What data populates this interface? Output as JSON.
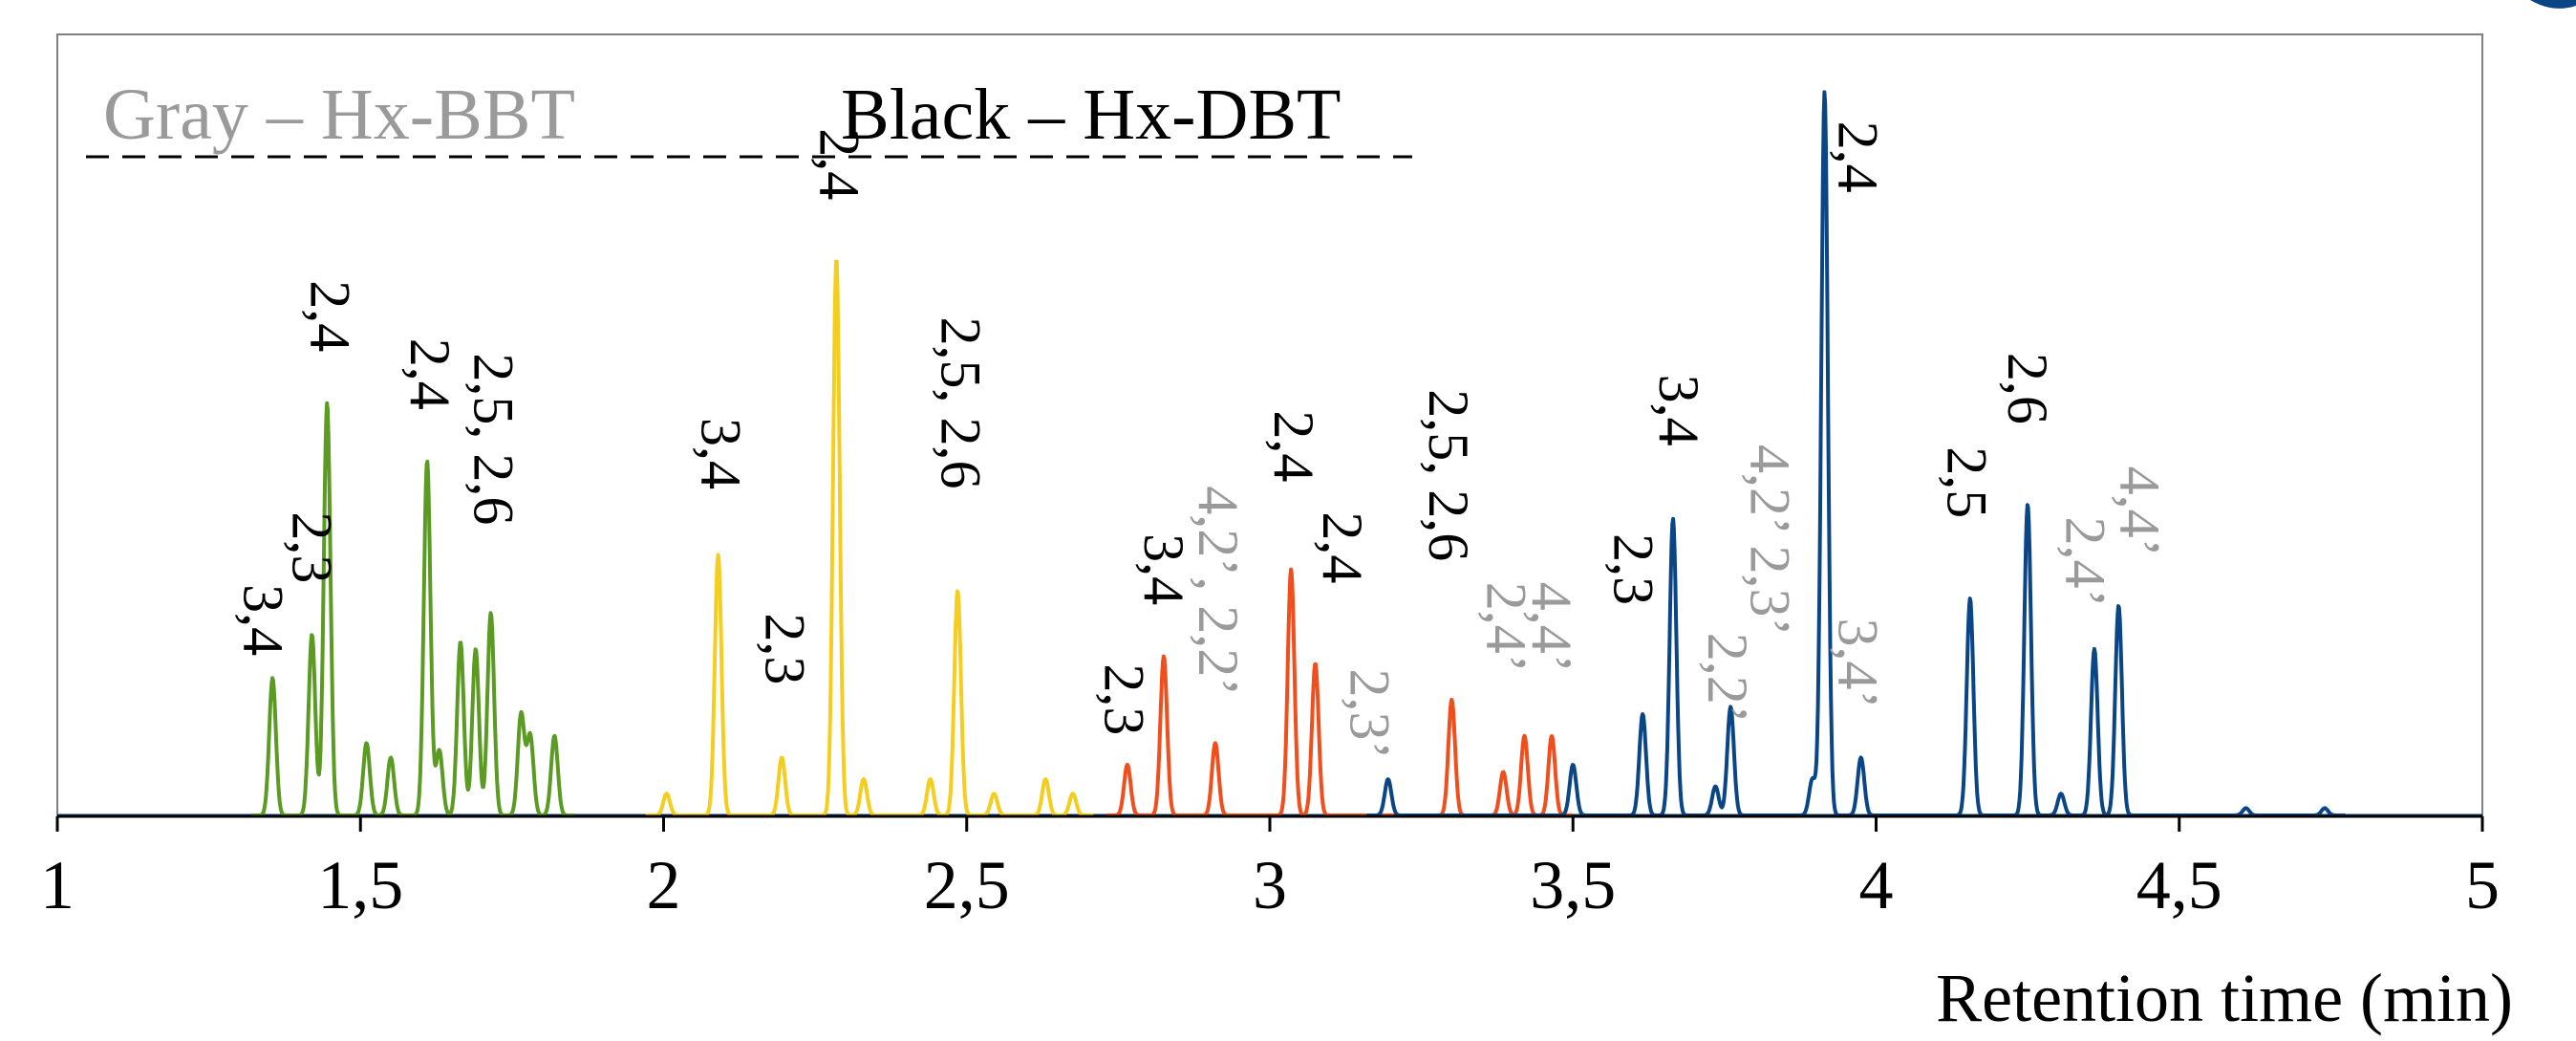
{
  "chart_data": {
    "type": "line",
    "title": "",
    "xlabel": "Retention time (min)",
    "ylabel": "",
    "xlim": [
      1,
      5
    ],
    "ylim": [
      0,
      1
    ],
    "grid": false,
    "x_ticks": [
      1,
      1.5,
      2,
      2.5,
      3,
      3.5,
      4,
      4.5,
      5
    ],
    "x_tick_labels": [
      "1",
      "1,5",
      "2",
      "2,5",
      "3",
      "3,5",
      "4",
      "4,5",
      "5"
    ],
    "legend": [
      {
        "label": "Gray – Hx-BBT",
        "color": "#9a9a9a"
      },
      {
        "label": "Black – Hx-DBT",
        "color": "#000000"
      }
    ],
    "series": [
      {
        "color": "#5b9a23",
        "peaks": [
          {
            "x": 1.355,
            "y": 0.19
          },
          {
            "x": 1.42,
            "y": 0.25
          },
          {
            "x": 1.445,
            "y": 0.57
          },
          {
            "x": 1.51,
            "y": 0.1
          },
          {
            "x": 1.55,
            "y": 0.08
          },
          {
            "x": 1.61,
            "y": 0.49
          },
          {
            "x": 1.63,
            "y": 0.09
          },
          {
            "x": 1.665,
            "y": 0.24
          },
          {
            "x": 1.69,
            "y": 0.23
          },
          {
            "x": 1.715,
            "y": 0.28
          },
          {
            "x": 1.765,
            "y": 0.14
          },
          {
            "x": 1.78,
            "y": 0.11
          },
          {
            "x": 1.82,
            "y": 0.11
          }
        ]
      },
      {
        "color": "#f5cd1e",
        "peaks": [
          {
            "x": 2.005,
            "y": 0.03
          },
          {
            "x": 2.09,
            "y": 0.36
          },
          {
            "x": 2.195,
            "y": 0.08
          },
          {
            "x": 2.285,
            "y": 0.77
          },
          {
            "x": 2.33,
            "y": 0.05
          },
          {
            "x": 2.44,
            "y": 0.05
          },
          {
            "x": 2.485,
            "y": 0.31
          },
          {
            "x": 2.545,
            "y": 0.03
          },
          {
            "x": 2.63,
            "y": 0.05
          },
          {
            "x": 2.675,
            "y": 0.03
          }
        ]
      },
      {
        "color": "#f04e1c",
        "peaks": [
          {
            "x": 2.765,
            "y": 0.07
          },
          {
            "x": 2.825,
            "y": 0.22
          },
          {
            "x": 2.91,
            "y": 0.1
          },
          {
            "x": 3.035,
            "y": 0.34
          },
          {
            "x": 3.075,
            "y": 0.21
          },
          {
            "x": 3.3,
            "y": 0.16
          },
          {
            "x": 3.385,
            "y": 0.06
          },
          {
            "x": 3.42,
            "y": 0.11
          },
          {
            "x": 3.465,
            "y": 0.11
          }
        ]
      },
      {
        "color": "#0a4586",
        "peaks": [
          {
            "x": 3.195,
            "y": 0.05
          },
          {
            "x": 3.5,
            "y": 0.07
          },
          {
            "x": 3.615,
            "y": 0.14
          },
          {
            "x": 3.665,
            "y": 0.41
          },
          {
            "x": 3.735,
            "y": 0.04
          },
          {
            "x": 3.76,
            "y": 0.15
          },
          {
            "x": 3.895,
            "y": 0.05
          },
          {
            "x": 3.915,
            "y": 1.0
          },
          {
            "x": 3.975,
            "y": 0.08
          },
          {
            "x": 4.155,
            "y": 0.3
          },
          {
            "x": 4.25,
            "y": 0.43
          },
          {
            "x": 4.305,
            "y": 0.03
          },
          {
            "x": 4.36,
            "y": 0.23
          },
          {
            "x": 4.4,
            "y": 0.29
          },
          {
            "x": 4.61,
            "y": 0.01
          },
          {
            "x": 4.74,
            "y": 0.01
          }
        ]
      }
    ],
    "peak_labels": [
      {
        "text": "3,4",
        "x": 1.33,
        "y": 0.27,
        "color": "#000000"
      },
      {
        "text": "2,3",
        "x": 1.41,
        "y": 0.37,
        "color": "#000000"
      },
      {
        "text": "2,4",
        "x": 1.44,
        "y": 0.69,
        "color": "#000000"
      },
      {
        "text": "2,4",
        "x": 1.605,
        "y": 0.61,
        "color": "#000000"
      },
      {
        "text": "2,5, 2,6",
        "x": 1.71,
        "y": 0.52,
        "color": "#000000"
      },
      {
        "text": "3,4",
        "x": 2.085,
        "y": 0.5,
        "color": "#000000"
      },
      {
        "text": "2,3",
        "x": 2.19,
        "y": 0.23,
        "color": "#000000"
      },
      {
        "text": "2,4",
        "x": 2.28,
        "y": 0.9,
        "color": "#000000"
      },
      {
        "text": "2,5, 2,6",
        "x": 2.48,
        "y": 0.57,
        "color": "#000000"
      },
      {
        "text": "2,3",
        "x": 2.75,
        "y": 0.16,
        "color": "#000000"
      },
      {
        "text": "3,4",
        "x": 2.815,
        "y": 0.34,
        "color": "#000000"
      },
      {
        "text": "4,2’, 2,2’",
        "x": 2.905,
        "y": 0.31,
        "color": "#9a9a9a"
      },
      {
        "text": "2,4",
        "x": 3.03,
        "y": 0.51,
        "color": "#000000"
      },
      {
        "text": "2,4",
        "x": 3.11,
        "y": 0.37,
        "color": "#000000"
      },
      {
        "text": "2,3’",
        "x": 3.155,
        "y": 0.14,
        "color": "#9a9a9a"
      },
      {
        "text": "2,5, 2,6",
        "x": 3.285,
        "y": 0.47,
        "color": "#000000"
      },
      {
        "text": "2,4’",
        "x": 3.38,
        "y": 0.26,
        "color": "#9a9a9a"
      },
      {
        "text": "4,4’",
        "x": 3.455,
        "y": 0.26,
        "color": "#9a9a9a"
      },
      {
        "text": "2,3",
        "x": 3.59,
        "y": 0.34,
        "color": "#000000"
      },
      {
        "text": "3,4",
        "x": 3.665,
        "y": 0.56,
        "color": "#000000"
      },
      {
        "text": "2,2’",
        "x": 3.745,
        "y": 0.19,
        "color": "#9a9a9a"
      },
      {
        "text": "4,2’ 2,3’",
        "x": 3.815,
        "y": 0.38,
        "color": "#9a9a9a"
      },
      {
        "text": "2,4",
        "x": 3.96,
        "y": 0.91,
        "color": "#000000"
      },
      {
        "text": "3,4’",
        "x": 3.96,
        "y": 0.21,
        "color": "#9a9a9a"
      },
      {
        "text": "2,5",
        "x": 4.14,
        "y": 0.46,
        "color": "#000000"
      },
      {
        "text": "2,6",
        "x": 4.24,
        "y": 0.59,
        "color": "#000000"
      },
      {
        "text": "2,4’",
        "x": 4.335,
        "y": 0.35,
        "color": "#9a9a9a"
      },
      {
        "text": "4,4’",
        "x": 4.425,
        "y": 0.42,
        "color": "#9a9a9a"
      }
    ]
  }
}
